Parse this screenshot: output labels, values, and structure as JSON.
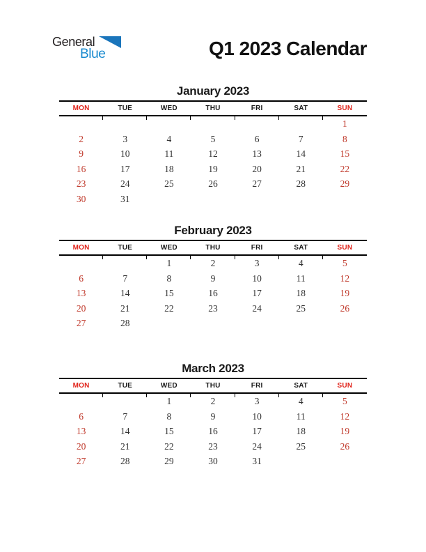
{
  "logo": {
    "part1": "General",
    "part2": "Blue"
  },
  "header": {
    "title": "Q1 2023 Calendar"
  },
  "weekdays": [
    "MON",
    "TUE",
    "WED",
    "THU",
    "FRI",
    "SAT",
    "SUN"
  ],
  "colors": {
    "weekday_header_red": "#e1251c",
    "weekend_day_red": "#c0392b",
    "text_black": "#1a1a1a",
    "logo_blue_text": "#1789cf",
    "logo_blue_triangle": "#1a75bb",
    "line_black": "#000000"
  },
  "months": [
    {
      "title": "January 2023",
      "weeks": [
        [
          "",
          "",
          "",
          "",
          "",
          "",
          "1"
        ],
        [
          "2",
          "3",
          "4",
          "5",
          "6",
          "7",
          "8"
        ],
        [
          "9",
          "10",
          "11",
          "12",
          "13",
          "14",
          "15"
        ],
        [
          "16",
          "17",
          "18",
          "19",
          "20",
          "21",
          "22"
        ],
        [
          "23",
          "24",
          "25",
          "26",
          "27",
          "28",
          "29"
        ],
        [
          "30",
          "31",
          "",
          "",
          "",
          "",
          ""
        ]
      ]
    },
    {
      "title": "February 2023",
      "weeks": [
        [
          "",
          "",
          "1",
          "2",
          "3",
          "4",
          "5"
        ],
        [
          "6",
          "7",
          "8",
          "9",
          "10",
          "11",
          "12"
        ],
        [
          "13",
          "14",
          "15",
          "16",
          "17",
          "18",
          "19"
        ],
        [
          "20",
          "21",
          "22",
          "23",
          "24",
          "25",
          "26"
        ],
        [
          "27",
          "28",
          "",
          "",
          "",
          "",
          ""
        ]
      ]
    },
    {
      "title": "March 2023",
      "weeks": [
        [
          "",
          "",
          "1",
          "2",
          "3",
          "4",
          "5"
        ],
        [
          "6",
          "7",
          "8",
          "9",
          "10",
          "11",
          "12"
        ],
        [
          "13",
          "14",
          "15",
          "16",
          "17",
          "18",
          "19"
        ],
        [
          "20",
          "21",
          "22",
          "23",
          "24",
          "25",
          "26"
        ],
        [
          "27",
          "28",
          "29",
          "30",
          "31",
          "",
          ""
        ]
      ]
    }
  ]
}
